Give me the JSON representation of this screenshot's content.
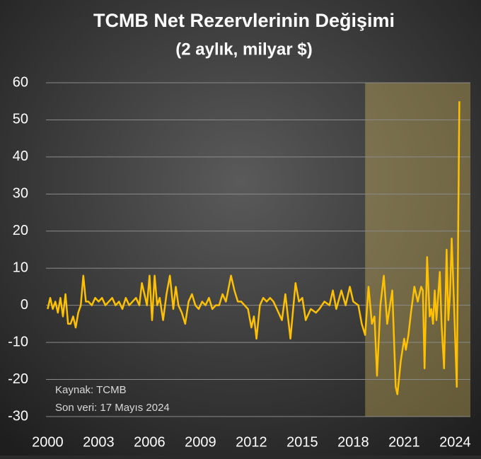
{
  "chart_data": {
    "type": "line",
    "title": "TCMB Net Rezervlerinin Değişimi",
    "subtitle": "(2 aylık, milyar $)",
    "annotations": [
      "Kaynak: TCMB",
      "Son veri: 17 Mayıs 2024"
    ],
    "x": [
      2000,
      2000.15,
      2000.3,
      2000.45,
      2000.6,
      2000.75,
      2000.9,
      2001.05,
      2001.2,
      2001.35,
      2001.5,
      2001.65,
      2001.8,
      2001.95,
      2002.1,
      2002.25,
      2002.4,
      2002.6,
      2002.8,
      2003,
      2003.2,
      2003.4,
      2003.6,
      2003.8,
      2004,
      2004.2,
      2004.4,
      2004.6,
      2004.8,
      2005,
      2005.2,
      2005.4,
      2005.55,
      2005.7,
      2005.85,
      2006,
      2006.15,
      2006.3,
      2006.45,
      2006.6,
      2006.8,
      2007,
      2007.2,
      2007.4,
      2007.55,
      2007.7,
      2007.9,
      2008.1,
      2008.3,
      2008.5,
      2008.7,
      2008.9,
      2009.1,
      2009.3,
      2009.5,
      2009.7,
      2009.9,
      2010.1,
      2010.3,
      2010.5,
      2010.8,
      2011,
      2011.2,
      2011.4,
      2011.6,
      2011.8,
      2012,
      2012.15,
      2012.3,
      2012.5,
      2012.7,
      2012.9,
      2013.1,
      2013.3,
      2013.5,
      2013.8,
      2014,
      2014.3,
      2014.6,
      2014.8,
      2015,
      2015.2,
      2015.5,
      2015.8,
      2016,
      2016.3,
      2016.6,
      2016.8,
      2017,
      2017.3,
      2017.55,
      2017.8,
      2018,
      2018.3,
      2018.5,
      2018.7,
      2018.9,
      2019.1,
      2019.25,
      2019.4,
      2019.6,
      2019.8,
      2020,
      2020.3,
      2020.5,
      2020.6,
      2020.8,
      2021,
      2021.1,
      2021.25,
      2021.4,
      2021.6,
      2021.8,
      2022,
      2022.1,
      2022.2,
      2022.35,
      2022.5,
      2022.6,
      2022.7,
      2022.8,
      2022.9,
      2023.1,
      2023.2,
      2023.35,
      2023.5,
      2023.6,
      2023.7,
      2023.8,
      2023.9,
      2024.1,
      2024.25
    ],
    "values": [
      -1,
      2,
      -1,
      1,
      -2,
      2,
      -3,
      3,
      -5,
      -5,
      -3,
      -6,
      -2,
      0,
      8,
      1,
      1,
      0,
      2,
      1,
      2,
      0,
      1,
      2,
      0,
      1,
      -1,
      2,
      0,
      1,
      2,
      0,
      6,
      3,
      0,
      8,
      -4,
      8,
      0,
      2,
      -4,
      3,
      8,
      -1,
      5,
      0,
      -2,
      -5,
      1,
      3,
      0,
      -1,
      1,
      0,
      2,
      -1,
      0,
      0,
      3,
      1,
      8,
      4,
      1,
      1,
      0,
      -1,
      -6,
      -3,
      -9,
      0,
      2,
      1,
      2,
      1,
      -1,
      -4,
      3,
      -9,
      6,
      1,
      2,
      -4,
      -1,
      -2,
      -1,
      1,
      0,
      4,
      -1,
      4,
      0,
      5,
      1,
      0,
      -5,
      -8,
      5,
      -5,
      -3,
      -19,
      0,
      8,
      -5,
      4,
      -22,
      -24,
      -15,
      -9,
      -12,
      -8,
      -2,
      5,
      1,
      5,
      4,
      -17,
      13,
      -3,
      -1,
      -5,
      4,
      -4,
      9,
      -5,
      -17,
      15,
      -4,
      3,
      18,
      5,
      -22,
      55
    ],
    "color": "#ffc000",
    "xlim": [
      1999.9,
      2024.9
    ],
    "xticks": [
      2000,
      2003,
      2006,
      2009,
      2012,
      2015,
      2018,
      2021,
      2024
    ],
    "ylim": [
      -30,
      60
    ],
    "yticks": [
      -30,
      -20,
      -10,
      0,
      10,
      20,
      30,
      40,
      50,
      60
    ],
    "grid": true,
    "highlight_x": [
      2018.7,
      2024.9
    ]
  }
}
